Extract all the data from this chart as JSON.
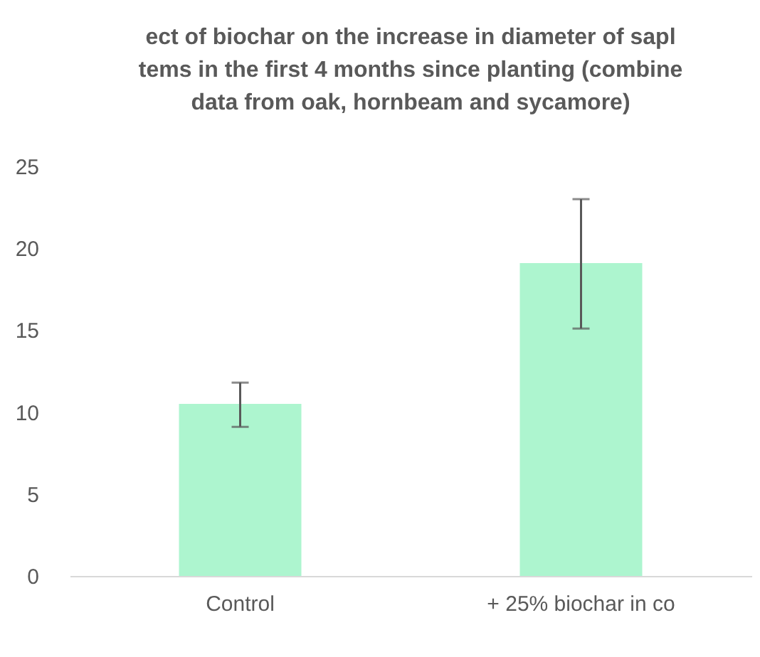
{
  "chart_data": {
    "type": "bar",
    "title": "ect of biochar on the increase in diameter of sapl\ntems in the first 4 months since planting (combine\ndata from oak, hornbeam and sycamore)",
    "categories": [
      "Control",
      "+ 25% biochar in co"
    ],
    "values": [
      10.5,
      19.1
    ],
    "errors": [
      [
        9.1,
        11.8
      ],
      [
        15.1,
        23.0
      ]
    ],
    "color": "#adf5cf",
    "ylim": [
      0,
      25
    ],
    "yticks": [
      0,
      5,
      10,
      15,
      20,
      25
    ],
    "grid": false
  }
}
